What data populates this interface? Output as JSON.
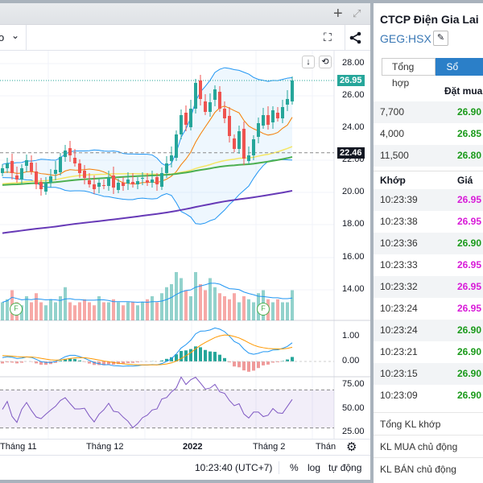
{
  "toolbar": {
    "interval_label": "o",
    "plus": "+"
  },
  "price_axis": {
    "ticks": [
      "28.00",
      "26.00",
      "24.00",
      "22.00",
      "20.00",
      "18.00",
      "16.00",
      "14.00"
    ],
    "last_price": "26.95",
    "ref_price": "22.46",
    "macd_ticks": [
      "1.00",
      "0.00"
    ],
    "rsi_ticks": [
      "75.00",
      "50.00",
      "25.00"
    ]
  },
  "time_axis": {
    "labels": [
      "Tháng 11",
      "Tháng 12",
      "2022",
      "Tháng 2",
      "Tháng"
    ]
  },
  "status": {
    "time": "10:23:40 (UTC+7)",
    "percent": "%",
    "log": "log",
    "auto": "tự động"
  },
  "markers": [
    "F",
    "F"
  ],
  "colors": {
    "up": "#26a69a",
    "down": "#ef5350",
    "accent": "#2b7fc8",
    "buy_price": "#1a9a1a",
    "trade_up": "#d81ad8"
  },
  "series": {
    "closes": [
      21.5,
      21.8,
      21.2,
      20.8,
      21.5,
      22,
      21.3,
      20.5,
      20.2,
      20.6,
      21,
      21.4,
      22.2,
      22.6,
      22.3,
      21.8,
      21.2,
      20.9,
      20.5,
      20.2,
      20.6,
      20.4,
      20.9,
      20.3,
      20.6,
      20.4,
      20.8,
      20.5,
      20.7,
      20.9,
      20.6,
      20.8,
      20.5,
      21.2,
      21.8,
      22.3,
      23.6,
      24.8,
      24.2,
      25.2,
      26.8,
      25.8,
      25.0,
      25.6,
      26.4,
      25.2,
      24.6,
      23.5,
      22.7,
      23.8,
      22.1,
      22.3,
      23.3,
      24.3,
      24.8,
      24.2,
      25.1,
      24.6,
      25.3,
      25.8,
      26.95
    ],
    "volumes": [
      0.3,
      0.35,
      0.5,
      0.3,
      0.25,
      0.4,
      0.3,
      0.45,
      0.3,
      0.25,
      0.35,
      0.3,
      0.4,
      0.55,
      0.3,
      0.25,
      0.3,
      0.35,
      0.3,
      0.25,
      0.4,
      0.3,
      0.3,
      0.35,
      0.3,
      0.25,
      0.3,
      0.3,
      0.25,
      0.3,
      0.35,
      0.4,
      0.3,
      0.45,
      0.55,
      0.6,
      0.8,
      0.7,
      0.5,
      0.4,
      0.8,
      0.6,
      0.5,
      0.7,
      0.55,
      0.45,
      0.4,
      0.35,
      0.45,
      0.3,
      0.4,
      0.35,
      0.3,
      0.45,
      0.5,
      0.35,
      0.3,
      0.35,
      0.3,
      0.3,
      0.5
    ]
  },
  "panel": {
    "company": "CTCP Điện Gia Lai",
    "ticker": "GEG:HSX",
    "tabs": [
      "Tổng hợp",
      "Sổ lệnh"
    ],
    "bid_header": "Đặt mua",
    "bids": [
      {
        "vol": "7,700",
        "price": "26.90"
      },
      {
        "vol": "4,000",
        "price": "26.85"
      },
      {
        "vol": "11,500",
        "price": "26.80"
      }
    ],
    "trades_header": {
      "time": "Khớp",
      "price": "Giá"
    },
    "trades": [
      {
        "t": "10:23:39",
        "p": "26.95",
        "c": "pink"
      },
      {
        "t": "10:23:38",
        "p": "26.95",
        "c": "pink"
      },
      {
        "t": "10:23:36",
        "p": "26.90",
        "c": "green"
      },
      {
        "t": "10:23:33",
        "p": "26.95",
        "c": "pink"
      },
      {
        "t": "10:23:32",
        "p": "26.95",
        "c": "pink"
      },
      {
        "t": "10:23:24",
        "p": "26.95",
        "c": "pink"
      },
      {
        "t": "10:23:24",
        "p": "26.90",
        "c": "green"
      },
      {
        "t": "10:23:21",
        "p": "26.90",
        "c": "green"
      },
      {
        "t": "10:23:15",
        "p": "26.90",
        "c": "green"
      },
      {
        "t": "10:23:09",
        "p": "26.90",
        "c": "green"
      }
    ],
    "footer": [
      "Tổng KL khớp",
      "KL MUA chủ động",
      "KL BÁN chủ động"
    ]
  }
}
